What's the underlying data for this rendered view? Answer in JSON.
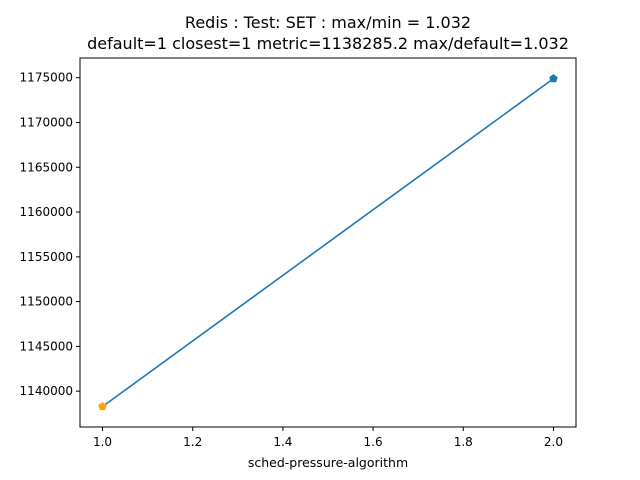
{
  "chart_data": {
    "type": "line",
    "title_line1": "Redis : Test: SET : max/min = 1.032",
    "title_line2": "default=1 closest=1 metric=1138285.2 max/default=1.032",
    "xlabel": "sched-pressure-algorithm",
    "ylabel": "",
    "xlim": [
      0.95,
      2.05
    ],
    "ylim": [
      1136000,
      1177200
    ],
    "x_ticks": [
      1.0,
      1.2,
      1.4,
      1.6,
      1.8,
      2.0
    ],
    "x_tick_labels": [
      "1.0",
      "1.2",
      "1.4",
      "1.6",
      "1.8",
      "2.0"
    ],
    "y_ticks": [
      1140000,
      1145000,
      1150000,
      1155000,
      1160000,
      1165000,
      1170000,
      1175000
    ],
    "y_tick_labels": [
      "1140000",
      "1145000",
      "1150000",
      "1155000",
      "1160000",
      "1165000",
      "1170000",
      "1175000"
    ],
    "grid": false,
    "series": [
      {
        "x": [
          1,
          2
        ],
        "values": [
          1138285.2,
          1174900
        ],
        "color": "#1f77b4",
        "marker_colors": [
          "#ffa500",
          "#1f77b4"
        ],
        "marker": "pentagon"
      }
    ]
  }
}
